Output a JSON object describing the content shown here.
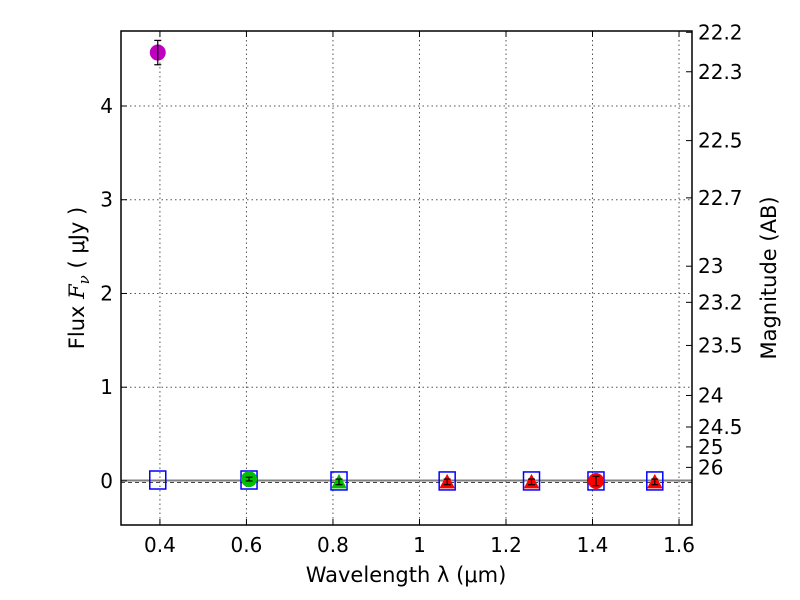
{
  "chart_data": {
    "type": "scatter",
    "xlabel": "Wavelength  λ (μm)",
    "ylabel_prefix": "Flux  ",
    "ylabel_var": "F",
    "ylabel_sub": "ν",
    "ylabel_unit": "  ( μJy )",
    "y2label": "Magnitude (AB)",
    "xlim": [
      0.31,
      1.63
    ],
    "ylim": [
      -0.47,
      4.8
    ],
    "xticks": [
      0.4,
      0.6,
      0.8,
      1.0,
      1.2,
      1.4,
      1.6
    ],
    "xtick_labels": [
      "0.4",
      "0.6",
      "0.8",
      "1",
      "1.2",
      "1.4",
      "1.6"
    ],
    "yticks": [
      0,
      1,
      2,
      3,
      4
    ],
    "ytick_labels": [
      "0",
      "1",
      "2",
      "3",
      "4"
    ],
    "magnitude_ticks": [
      22.2,
      22.3,
      22.5,
      22.7,
      23,
      23.2,
      23.5,
      24,
      24.5,
      25,
      26
    ],
    "magnitude_tick_labels": [
      "22.2",
      "22.3",
      "22.5",
      "22.7",
      "23",
      "23.2",
      "23.5",
      "24",
      "24.5",
      "25",
      "26"
    ],
    "grid": true,
    "observed": [
      {
        "x": 0.395,
        "y": 4.57,
        "err": 0.13,
        "marker": "circle",
        "color": "#bf00bf"
      },
      {
        "x": 0.606,
        "y": 0.02,
        "err": 0.02,
        "marker": "circle",
        "color": "#00bf00"
      },
      {
        "x": 0.814,
        "y": -0.01,
        "err": 0.03,
        "marker": "triangle",
        "color": "#00bf00"
      },
      {
        "x": 1.064,
        "y": -0.01,
        "err": 0.03,
        "marker": "triangle",
        "color": "#ff0000"
      },
      {
        "x": 1.259,
        "y": -0.01,
        "err": 0.03,
        "marker": "triangle",
        "color": "#ff0000"
      },
      {
        "x": 1.408,
        "y": 0.0,
        "err": 0.05,
        "marker": "circle",
        "color": "#ff0000"
      },
      {
        "x": 1.544,
        "y": -0.01,
        "err": 0.03,
        "marker": "triangle",
        "color": "#ff0000"
      }
    ],
    "model": [
      {
        "x": 0.395,
        "y": 0.01
      },
      {
        "x": 0.606,
        "y": 0.01
      },
      {
        "x": 0.814,
        "y": 0.0
      },
      {
        "x": 1.064,
        "y": 0.0
      },
      {
        "x": 1.259,
        "y": 0.0
      },
      {
        "x": 1.408,
        "y": 0.0
      },
      {
        "x": 1.544,
        "y": 0.0
      }
    ],
    "model_marker": "square",
    "model_color": "#0000ff",
    "sed_line_color": "#808080",
    "sed_line_flux": 0.005
  }
}
